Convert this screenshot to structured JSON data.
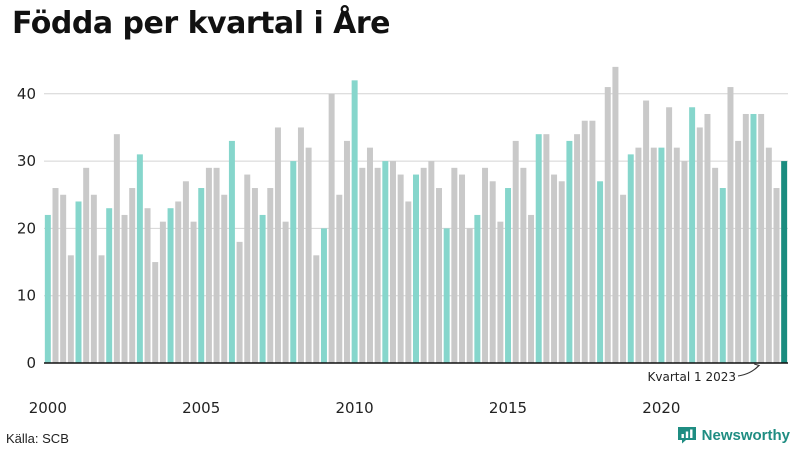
{
  "title": "Födda per kvartal i Åre",
  "source": "Källa: SCB",
  "brand": "Newsworthy",
  "annotation": "Kvartal 1 2023",
  "colors": {
    "bar": "#c9c9c9",
    "q1": "#86d6cc",
    "latest": "#1a8c7f",
    "axis": "#111111",
    "grid": "#d4d4d4"
  },
  "chart_data": {
    "type": "bar",
    "title": "Födda per kvartal i Åre",
    "xlabel": "",
    "ylabel": "",
    "ylim": [
      0,
      46
    ],
    "yticks": [
      0,
      10,
      20,
      30,
      40
    ],
    "grid": true,
    "start_year": 2000,
    "xtick_labels": [
      "2000",
      "2005",
      "2010",
      "2015",
      "2020"
    ],
    "highlight": "Q1 of each year in teal; latest quarter (Q1 2023) in dark teal",
    "values": [
      22,
      26,
      25,
      16,
      24,
      29,
      25,
      16,
      23,
      34,
      22,
      26,
      31,
      23,
      15,
      21,
      23,
      24,
      27,
      21,
      26,
      29,
      29,
      25,
      33,
      18,
      28,
      26,
      22,
      26,
      35,
      21,
      30,
      35,
      32,
      16,
      20,
      40,
      25,
      33,
      42,
      29,
      32,
      29,
      30,
      30,
      28,
      24,
      28,
      29,
      30,
      26,
      20,
      29,
      28,
      20,
      22,
      29,
      27,
      21,
      26,
      33,
      29,
      22,
      34,
      34,
      28,
      27,
      33,
      34,
      36,
      36,
      27,
      41,
      44,
      25,
      31,
      32,
      39,
      32,
      32,
      38,
      32,
      30,
      38,
      35,
      37,
      29,
      26,
      41,
      33,
      37,
      37,
      37,
      32,
      26,
      30
    ]
  }
}
